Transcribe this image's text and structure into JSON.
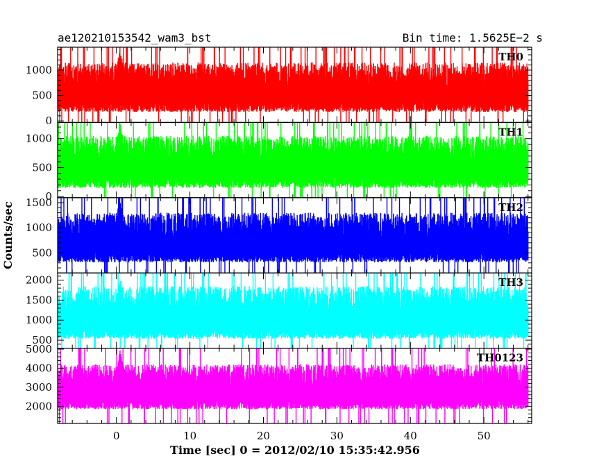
{
  "header": {
    "title": "ae120210153542_wam3_bst",
    "bin_time": "Bin time: 1.5625E−2 s"
  },
  "chart_data": {
    "type": "line",
    "title": "ae120210153542_wam3_bst",
    "xlabel": "Time [sec] 0 = 2012/02/10 15:35:42.956",
    "ylabel": "Counts/sec",
    "xlim": [
      -8,
      56.5
    ],
    "x_ticks": [
      0,
      10,
      20,
      30,
      40,
      50
    ],
    "x_tick_labels": [
      "0",
      "10",
      "20",
      "30",
      "40",
      "50"
    ],
    "bin_seconds": 0.015625,
    "x_start": -8,
    "x_end": 56,
    "grid": false,
    "legend": "none",
    "panels": [
      {
        "name": "TH0",
        "color": "#ff0000",
        "ylim": [
          -30,
          1450
        ],
        "yticks": [
          0,
          500,
          1000
        ],
        "ytick_labels": [
          "0",
          "500",
          "1000"
        ],
        "typical_mean": 560,
        "typical_low": 80,
        "typical_high": 1150,
        "burst_time": 0.5,
        "burst_peak": 1450
      },
      {
        "name": "TH1",
        "color": "#00ff00",
        "ylim": [
          -20,
          1280
        ],
        "yticks": [
          0,
          500,
          1000
        ],
        "ytick_labels": [
          "0",
          "500",
          "1000"
        ],
        "typical_mean": 500,
        "typical_low": 60,
        "typical_high": 1050,
        "burst_time": 0.5,
        "burst_peak": 1280
      },
      {
        "name": "TH2",
        "color": "#0000ff",
        "ylim": [
          100,
          1600
        ],
        "yticks": [
          500,
          1000,
          1500
        ],
        "ytick_labels": [
          "500",
          "1000",
          "1500"
        ],
        "typical_mean": 680,
        "typical_low": 220,
        "typical_high": 1300,
        "burst_time": 0.5,
        "burst_peak": 1600
      },
      {
        "name": "TH3",
        "color": "#00ffff",
        "ylim": [
          300,
          2180
        ],
        "yticks": [
          500,
          1000,
          1500,
          2000
        ],
        "ytick_labels": [
          "500",
          "1000",
          "1500",
          "2000"
        ],
        "typical_mean": 1000,
        "typical_low": 420,
        "typical_high": 1850,
        "burst_time": 0.5,
        "burst_peak": 2100
      },
      {
        "name": "TH0123",
        "color": "#ff00ff",
        "ylim": [
          1100,
          5050
        ],
        "yticks": [
          2000,
          3000,
          4000,
          5000
        ],
        "ytick_labels": [
          "2000",
          "3000",
          "4000",
          "5000"
        ],
        "typical_mean": 2800,
        "typical_low": 1600,
        "typical_high": 4200,
        "burst_time": 0.5,
        "burst_peak": 5000
      }
    ]
  }
}
